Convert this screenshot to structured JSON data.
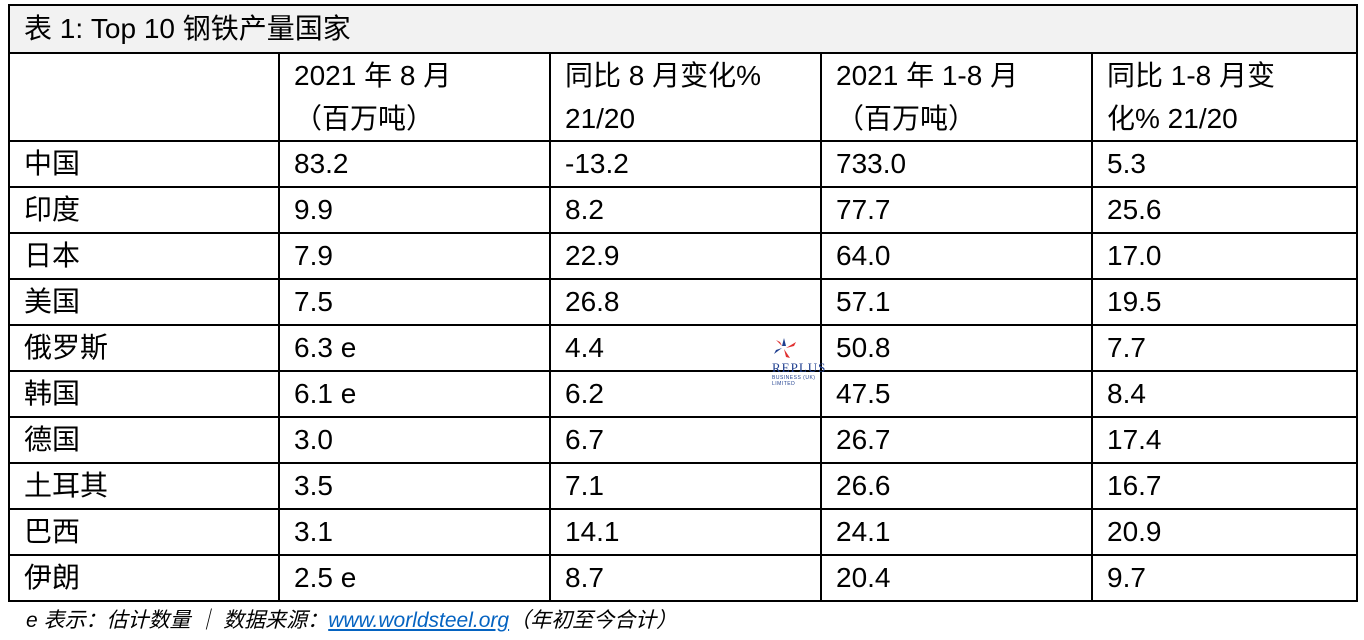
{
  "table": {
    "title": "表 1: Top 10 钢铁产量国家",
    "headers": [
      {
        "line1": "",
        "line2": ""
      },
      {
        "line1": "2021 年 8 月",
        "line2": "（百万吨）"
      },
      {
        "line1": "同比 8 月变化%",
        "line2": "21/20"
      },
      {
        "line1": "2021 年 1-8 月",
        "line2": "（百万吨）"
      },
      {
        "line1": "同比 1-8 月变",
        "line2": "化% 21/20"
      }
    ],
    "rows": [
      {
        "country": "中国",
        "aug": "83.2",
        "aug_yoy": "-13.2",
        "ytd": "733.0",
        "ytd_yoy": "5.3"
      },
      {
        "country": "印度",
        "aug": "9.9",
        "aug_yoy": "8.2",
        "ytd": "77.7",
        "ytd_yoy": "25.6"
      },
      {
        "country": "日本",
        "aug": "7.9",
        "aug_yoy": "22.9",
        "ytd": "64.0",
        "ytd_yoy": "17.0"
      },
      {
        "country": "美国",
        "aug": "7.5",
        "aug_yoy": "26.8",
        "ytd": "57.1",
        "ytd_yoy": "19.5"
      },
      {
        "country": "俄罗斯",
        "aug": "6.3 e",
        "aug_yoy": "4.4",
        "ytd": "50.8",
        "ytd_yoy": "7.7"
      },
      {
        "country": "韩国",
        "aug": "6.1 e",
        "aug_yoy": "6.2",
        "ytd": "47.5",
        "ytd_yoy": "8.4"
      },
      {
        "country": "德国",
        "aug": "3.0",
        "aug_yoy": "6.7",
        "ytd": "26.7",
        "ytd_yoy": "17.4"
      },
      {
        "country": "土耳其",
        "aug": "3.5",
        "aug_yoy": "7.1",
        "ytd": "26.6",
        "ytd_yoy": "16.7"
      },
      {
        "country": "巴西",
        "aug": "3.1",
        "aug_yoy": "14.1",
        "ytd": "24.1",
        "ytd_yoy": "20.9"
      },
      {
        "country": "伊朗",
        "aug": "2.5 e",
        "aug_yoy": "8.7",
        "ytd": "20.4",
        "ytd_yoy": "9.7"
      }
    ]
  },
  "footnote": {
    "prefix": "e 表示：估计数量 ｜ 数据来源：",
    "link": "www.worldsteel.org",
    "suffix": "（年初至今合计）"
  },
  "watermark": {
    "text": "REPLUS",
    "subtext": "BUSINESS (UK) LIMITED",
    "icon": "star-burst-logo-icon",
    "colors": {
      "blue": "#1f3f8f",
      "red": "#e03030"
    }
  }
}
